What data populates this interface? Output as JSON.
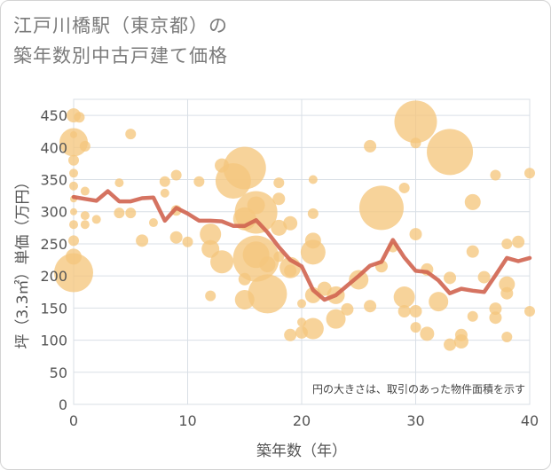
{
  "title_line1": "江戸川橋駅（東京都）の",
  "title_line2": "築年数別中古戸建て価格",
  "chart_data": {
    "type": "scatter",
    "xlabel": "築年数（年）",
    "ylabel": "坪（3.3㎡）単価（万円）",
    "xlim": [
      0,
      40
    ],
    "ylim": [
      0,
      475
    ],
    "x_ticks": [
      0,
      10,
      20,
      30,
      40
    ],
    "y_ticks": [
      0,
      50,
      100,
      150,
      200,
      250,
      300,
      350,
      400,
      450
    ],
    "grid": true,
    "annotation": "円の大きさは、取引のあった物件面積を示す",
    "colors": {
      "bubble": "#f5c77e",
      "line": "#d06450",
      "grid": "#d9dfe6"
    },
    "series": [
      {
        "type": "bubble",
        "points": [
          {
            "x": 0,
            "y": 450,
            "s": 8
          },
          {
            "x": 0,
            "y": 420,
            "s": 4
          },
          {
            "x": 0,
            "y": 408,
            "s": 16
          },
          {
            "x": 0,
            "y": 380,
            "s": 6
          },
          {
            "x": 0,
            "y": 360,
            "s": 5
          },
          {
            "x": 0,
            "y": 340,
            "s": 5
          },
          {
            "x": 0,
            "y": 320,
            "s": 4
          },
          {
            "x": 0,
            "y": 300,
            "s": 4
          },
          {
            "x": 0,
            "y": 280,
            "s": 5
          },
          {
            "x": 0,
            "y": 255,
            "s": 6
          },
          {
            "x": 0,
            "y": 230,
            "s": 9
          },
          {
            "x": 0,
            "y": 205,
            "s": 22
          },
          {
            "x": 0.5,
            "y": 447,
            "s": 6
          },
          {
            "x": 1,
            "y": 402,
            "s": 6
          },
          {
            "x": 1,
            "y": 332,
            "s": 5
          },
          {
            "x": 1,
            "y": 294,
            "s": 5
          },
          {
            "x": 1,
            "y": 280,
            "s": 5
          },
          {
            "x": 2,
            "y": 288,
            "s": 5
          },
          {
            "x": 4,
            "y": 345,
            "s": 5
          },
          {
            "x": 4,
            "y": 298,
            "s": 6
          },
          {
            "x": 5,
            "y": 421,
            "s": 6
          },
          {
            "x": 5,
            "y": 298,
            "s": 6
          },
          {
            "x": 6,
            "y": 255,
            "s": 7
          },
          {
            "x": 7,
            "y": 283,
            "s": 5
          },
          {
            "x": 8,
            "y": 347,
            "s": 6
          },
          {
            "x": 8,
            "y": 329,
            "s": 5
          },
          {
            "x": 9,
            "y": 357,
            "s": 6
          },
          {
            "x": 9,
            "y": 302,
            "s": 6
          },
          {
            "x": 9,
            "y": 260,
            "s": 7
          },
          {
            "x": 10,
            "y": 253,
            "s": 6
          },
          {
            "x": 11,
            "y": 347,
            "s": 6
          },
          {
            "x": 12,
            "y": 265,
            "s": 12
          },
          {
            "x": 12,
            "y": 242,
            "s": 10
          },
          {
            "x": 12,
            "y": 169,
            "s": 6
          },
          {
            "x": 13,
            "y": 372,
            "s": 8
          },
          {
            "x": 13,
            "y": 222,
            "s": 13
          },
          {
            "x": 14,
            "y": 348,
            "s": 20
          },
          {
            "x": 15,
            "y": 368,
            "s": 24
          },
          {
            "x": 15,
            "y": 289,
            "s": 13
          },
          {
            "x": 15,
            "y": 195,
            "s": 7
          },
          {
            "x": 15,
            "y": 163,
            "s": 11
          },
          {
            "x": 16,
            "y": 299,
            "s": 24
          },
          {
            "x": 16,
            "y": 233,
            "s": 15
          },
          {
            "x": 16,
            "y": 227,
            "s": 26
          },
          {
            "x": 16,
            "y": 310,
            "s": 10
          },
          {
            "x": 17,
            "y": 172,
            "s": 22
          },
          {
            "x": 17,
            "y": 218,
            "s": 9
          },
          {
            "x": 18,
            "y": 345,
            "s": 6
          },
          {
            "x": 18,
            "y": 320,
            "s": 7
          },
          {
            "x": 18,
            "y": 275,
            "s": 9
          },
          {
            "x": 18,
            "y": 230,
            "s": 6
          },
          {
            "x": 19,
            "y": 282,
            "s": 8
          },
          {
            "x": 19,
            "y": 213,
            "s": 12
          },
          {
            "x": 19,
            "y": 208,
            "s": 7
          },
          {
            "x": 19,
            "y": 108,
            "s": 7
          },
          {
            "x": 20,
            "y": 157,
            "s": 5
          },
          {
            "x": 20,
            "y": 128,
            "s": 5
          },
          {
            "x": 20,
            "y": 112,
            "s": 7
          },
          {
            "x": 21,
            "y": 350,
            "s": 5
          },
          {
            "x": 21,
            "y": 297,
            "s": 6
          },
          {
            "x": 21,
            "y": 255,
            "s": 9
          },
          {
            "x": 21,
            "y": 237,
            "s": 14
          },
          {
            "x": 21,
            "y": 170,
            "s": 9
          },
          {
            "x": 21,
            "y": 118,
            "s": 12
          },
          {
            "x": 22,
            "y": 180,
            "s": 8
          },
          {
            "x": 23,
            "y": 170,
            "s": 10
          },
          {
            "x": 23,
            "y": 133,
            "s": 11
          },
          {
            "x": 24,
            "y": 148,
            "s": 7
          },
          {
            "x": 25,
            "y": 194,
            "s": 11
          },
          {
            "x": 26,
            "y": 153,
            "s": 7
          },
          {
            "x": 26,
            "y": 402,
            "s": 7
          },
          {
            "x": 27,
            "y": 306,
            "s": 25
          },
          {
            "x": 27,
            "y": 215,
            "s": 7
          },
          {
            "x": 28,
            "y": 245,
            "s": 6
          },
          {
            "x": 29,
            "y": 337,
            "s": 6
          },
          {
            "x": 29,
            "y": 167,
            "s": 12
          },
          {
            "x": 29,
            "y": 145,
            "s": 7
          },
          {
            "x": 30,
            "y": 440,
            "s": 24
          },
          {
            "x": 30,
            "y": 407,
            "s": 6
          },
          {
            "x": 30,
            "y": 265,
            "s": 7
          },
          {
            "x": 30,
            "y": 145,
            "s": 7
          },
          {
            "x": 30,
            "y": 120,
            "s": 6
          },
          {
            "x": 31,
            "y": 210,
            "s": 7
          },
          {
            "x": 31,
            "y": 110,
            "s": 8
          },
          {
            "x": 32,
            "y": 160,
            "s": 11
          },
          {
            "x": 33,
            "y": 393,
            "s": 26
          },
          {
            "x": 33,
            "y": 197,
            "s": 7
          },
          {
            "x": 33,
            "y": 93,
            "s": 7
          },
          {
            "x": 34,
            "y": 108,
            "s": 7
          },
          {
            "x": 34,
            "y": 98,
            "s": 8
          },
          {
            "x": 35,
            "y": 315,
            "s": 9
          },
          {
            "x": 35,
            "y": 238,
            "s": 7
          },
          {
            "x": 35,
            "y": 137,
            "s": 6
          },
          {
            "x": 36,
            "y": 198,
            "s": 7
          },
          {
            "x": 37,
            "y": 357,
            "s": 6
          },
          {
            "x": 37,
            "y": 149,
            "s": 7
          },
          {
            "x": 37,
            "y": 135,
            "s": 7
          },
          {
            "x": 38,
            "y": 250,
            "s": 6
          },
          {
            "x": 38,
            "y": 187,
            "s": 9
          },
          {
            "x": 38,
            "y": 173,
            "s": 7
          },
          {
            "x": 38,
            "y": 105,
            "s": 6
          },
          {
            "x": 39,
            "y": 253,
            "s": 7
          },
          {
            "x": 40,
            "y": 360,
            "s": 6
          },
          {
            "x": 40,
            "y": 145,
            "s": 6
          }
        ]
      },
      {
        "type": "line",
        "x": [
          0,
          1,
          2,
          3,
          4,
          5,
          6,
          7,
          8,
          9,
          10,
          11,
          12,
          13,
          14,
          15,
          16,
          17,
          18,
          19,
          20,
          21,
          22,
          23,
          24,
          25,
          26,
          27,
          28,
          29,
          30,
          31,
          32,
          33,
          34,
          35,
          36,
          37,
          38,
          39,
          40
        ],
        "y": [
          323,
          320,
          317,
          332,
          316,
          316,
          321,
          322,
          286,
          306,
          297,
          286,
          286,
          285,
          278,
          278,
          287,
          268,
          245,
          225,
          215,
          178,
          163,
          170,
          185,
          200,
          216,
          222,
          256,
          229,
          208,
          206,
          193,
          173,
          180,
          177,
          175,
          201,
          228,
          223,
          228
        ]
      }
    ]
  }
}
